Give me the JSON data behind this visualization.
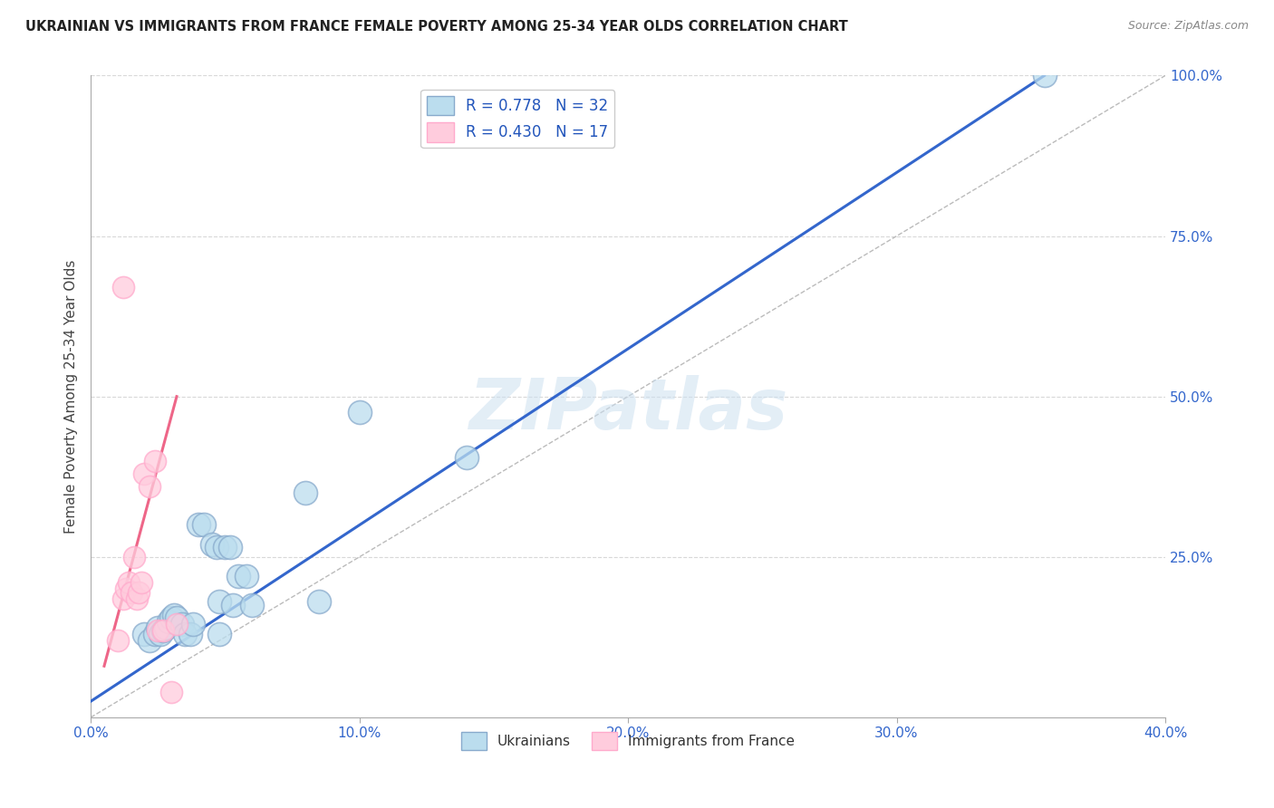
{
  "title": "UKRAINIAN VS IMMIGRANTS FROM FRANCE FEMALE POVERTY AMONG 25-34 YEAR OLDS CORRELATION CHART",
  "source": "Source: ZipAtlas.com",
  "ylabel": "Female Poverty Among 25-34 Year Olds",
  "xlabel": "",
  "xlim": [
    0,
    0.4
  ],
  "ylim": [
    0,
    1.0
  ],
  "xticks": [
    0.0,
    0.1,
    0.2,
    0.3,
    0.4
  ],
  "yticks": [
    0.0,
    0.25,
    0.5,
    0.75,
    1.0
  ],
  "xtick_labels": [
    "0.0%",
    "10.0%",
    "20.0%",
    "30.0%",
    "40.0%"
  ],
  "ytick_labels": [
    "",
    "25.0%",
    "50.0%",
    "75.0%",
    "100.0%"
  ],
  "background_color": "#ffffff",
  "grid_color": "#d8d8d8",
  "watermark": "ZIPatlas",
  "legend_r1": "R = 0.778",
  "legend_n1": "N = 32",
  "legend_r2": "R = 0.430",
  "legend_n2": "N = 17",
  "blue_scatter": [
    [
      0.02,
      0.13
    ],
    [
      0.022,
      0.12
    ],
    [
      0.024,
      0.13
    ],
    [
      0.025,
      0.14
    ],
    [
      0.026,
      0.13
    ],
    [
      0.027,
      0.135
    ],
    [
      0.028,
      0.14
    ],
    [
      0.029,
      0.15
    ],
    [
      0.03,
      0.155
    ],
    [
      0.031,
      0.16
    ],
    [
      0.032,
      0.155
    ],
    [
      0.034,
      0.145
    ],
    [
      0.035,
      0.13
    ],
    [
      0.037,
      0.13
    ],
    [
      0.038,
      0.145
    ],
    [
      0.04,
      0.3
    ],
    [
      0.042,
      0.3
    ],
    [
      0.045,
      0.27
    ],
    [
      0.047,
      0.265
    ],
    [
      0.048,
      0.18
    ],
    [
      0.048,
      0.13
    ],
    [
      0.05,
      0.265
    ],
    [
      0.052,
      0.265
    ],
    [
      0.053,
      0.175
    ],
    [
      0.055,
      0.22
    ],
    [
      0.058,
      0.22
    ],
    [
      0.06,
      0.175
    ],
    [
      0.08,
      0.35
    ],
    [
      0.085,
      0.18
    ],
    [
      0.1,
      0.475
    ],
    [
      0.14,
      0.405
    ],
    [
      0.355,
      1.0
    ]
  ],
  "pink_scatter": [
    [
      0.01,
      0.12
    ],
    [
      0.012,
      0.185
    ],
    [
      0.013,
      0.2
    ],
    [
      0.014,
      0.21
    ],
    [
      0.015,
      0.195
    ],
    [
      0.016,
      0.25
    ],
    [
      0.017,
      0.185
    ],
    [
      0.018,
      0.195
    ],
    [
      0.019,
      0.21
    ],
    [
      0.02,
      0.38
    ],
    [
      0.022,
      0.36
    ],
    [
      0.024,
      0.4
    ],
    [
      0.025,
      0.135
    ],
    [
      0.027,
      0.135
    ],
    [
      0.03,
      0.04
    ],
    [
      0.032,
      0.145
    ],
    [
      0.012,
      0.67
    ]
  ],
  "blue_line_x": [
    0.0,
    0.355
  ],
  "blue_line_y": [
    0.025,
    1.0
  ],
  "pink_line_x": [
    0.005,
    0.032
  ],
  "pink_line_y": [
    0.08,
    0.5
  ],
  "diag_line_x": [
    0.0,
    0.4
  ],
  "diag_line_y": [
    0.0,
    1.0
  ]
}
